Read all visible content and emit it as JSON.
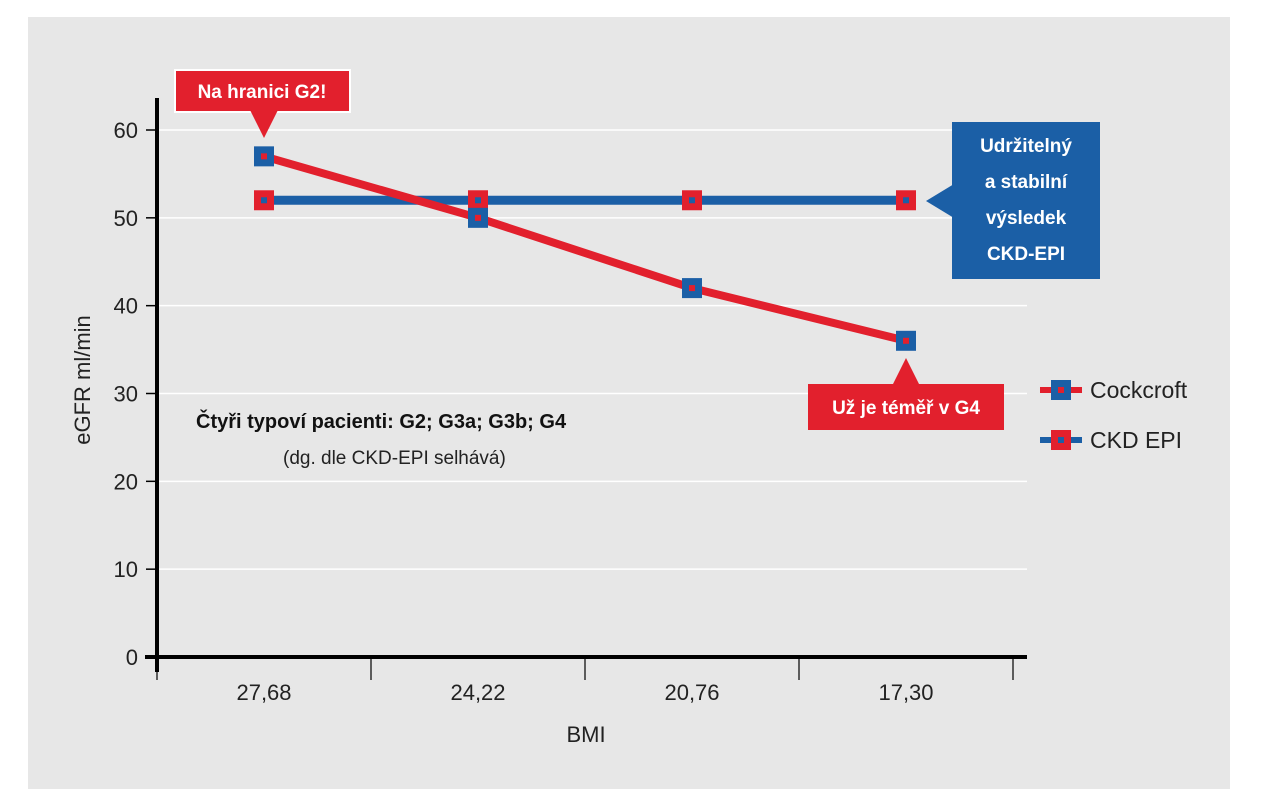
{
  "chart_data": {
    "type": "line",
    "x": [
      "27,68",
      "24,22",
      "20,76",
      "17,30"
    ],
    "xlabel": "BMI",
    "ylabel": "eGFR ml/min",
    "ylim": [
      0,
      60
    ],
    "yticks": [
      "0",
      "10",
      "20",
      "30",
      "40",
      "50",
      "60"
    ],
    "grid": true,
    "legend_position": "right",
    "series": [
      {
        "name": "Cockcroft",
        "values": [
          57,
          50,
          42,
          36
        ],
        "line_color": "#e2202d",
        "marker_fill": "#1b5fa6",
        "marker_center": "#e2202d"
      },
      {
        "name": "CKD EPI",
        "values": [
          52,
          52,
          52,
          52
        ],
        "line_color": "#1b5fa6",
        "marker_fill": "#e2202d",
        "marker_center": "#1b5fa6"
      }
    ],
    "annotations": {
      "top_callout": "Na hranici G2!",
      "right_callout": [
        "Udržitelný",
        "a stabilní",
        "výsledek",
        "CKD-EPI"
      ],
      "bottom_callout": "Už je téměř v G4",
      "note_title": "Čtyři typoví pacienti: G2; G3a; G3b; G4",
      "note_sub": "(dg. dle CKD-EPI selhává)"
    },
    "colors": {
      "red": "#e2202d",
      "blue": "#1b5fa6",
      "background": "#e7e7e7",
      "grid": "#ffffff"
    }
  }
}
